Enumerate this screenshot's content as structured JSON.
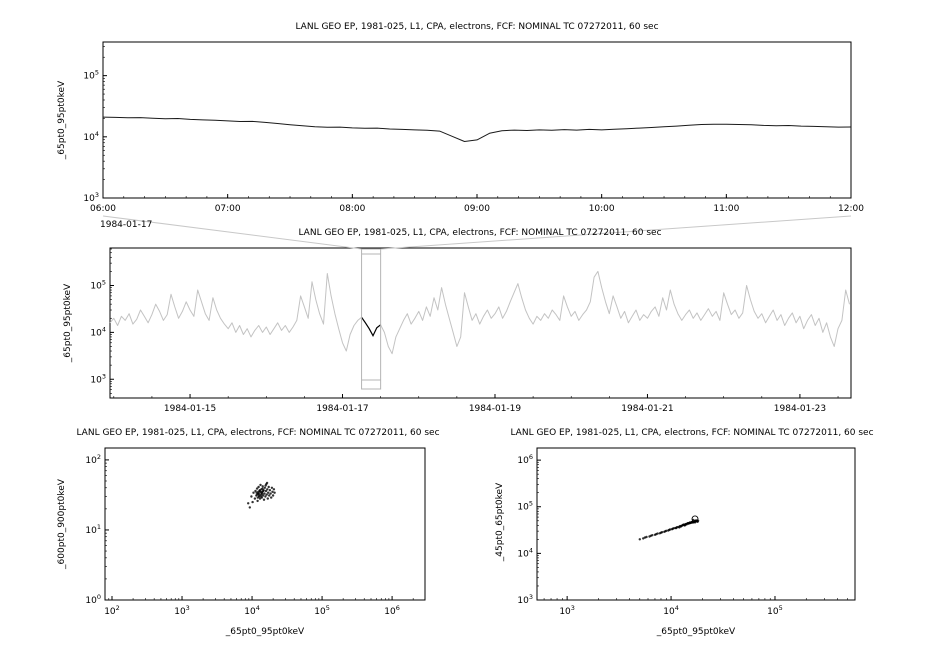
{
  "window": {
    "background": "#ffffff"
  },
  "chart_data": [
    {
      "type": "line",
      "title": "LANL GEO EP, 1981-025, L1, CPA, electrons, FCF: NOMINAL TC 07272011, 60 sec",
      "ylabel": "_65pt0_95pt0keV",
      "corner_label": "1984-01-17",
      "x_axis": {
        "scale": "linear",
        "range": [
          6,
          12
        ],
        "minor_step": 0.16667,
        "ticks": [
          {
            "v": 6,
            "label": "06:00"
          },
          {
            "v": 7,
            "label": "07:00"
          },
          {
            "v": 8,
            "label": "08:00"
          },
          {
            "v": 9,
            "label": "09:00"
          },
          {
            "v": 10,
            "label": "10:00"
          },
          {
            "v": 11,
            "label": "11:00"
          },
          {
            "v": 12,
            "label": "12:00"
          }
        ]
      },
      "y_axis": {
        "scale": "log",
        "range_log": [
          3,
          5.55
        ],
        "ticks_log": [
          3,
          4,
          5
        ]
      },
      "series": {
        "color": "#1a1a1a",
        "x_start": 6.0,
        "x_step": 0.1,
        "y_unit": 1000,
        "y": [
          21.0,
          20.8,
          20.5,
          20.6,
          20.1,
          19.7,
          19.9,
          19.3,
          18.9,
          18.6,
          18.2,
          17.8,
          17.9,
          17.2,
          16.5,
          15.8,
          15.2,
          14.6,
          14.3,
          14.4,
          14.0,
          13.8,
          13.9,
          13.4,
          13.2,
          13.0,
          12.8,
          12.4,
          10.2,
          8.4,
          8.9,
          11.4,
          12.6,
          12.9,
          12.7,
          13.0,
          12.8,
          13.1,
          12.9,
          13.2,
          13.0,
          13.3,
          13.6,
          13.9,
          14.2,
          14.6,
          15.0,
          15.5,
          15.9,
          16.1,
          16.0,
          15.9,
          15.7,
          15.4,
          15.2,
          15.3,
          15.0,
          14.8,
          14.6,
          14.4,
          14.5
        ]
      }
    },
    {
      "type": "line",
      "title": "LANL GEO EP, 1981-025, L1, CPA, electrons, FCF: NOMINAL TC 07272011, 60 sec",
      "ylabel": "_65pt0_95pt0keV",
      "x_axis": {
        "scale": "linear",
        "range": [
          13.95,
          23.67
        ],
        "minor_step": 0.5,
        "ticks": [
          {
            "v": 15,
            "label": "1984-01-15"
          },
          {
            "v": 17,
            "label": "1984-01-17"
          },
          {
            "v": 19,
            "label": "1984-01-19"
          },
          {
            "v": 21,
            "label": "1984-01-21"
          },
          {
            "v": 23,
            "label": "1984-01-23"
          }
        ]
      },
      "y_axis": {
        "scale": "log",
        "range_log": [
          2.6,
          5.8
        ],
        "ticks_log": [
          3,
          4,
          5
        ]
      },
      "highlight_range": [
        17.25,
        17.5
      ],
      "highlight_color": "#000000",
      "selection_range": [
        17.25,
        17.5
      ],
      "selection_color": "#b4b4b4",
      "connector_color": "#c8c8c8",
      "series": {
        "color": "#c3c3c3",
        "x_start": 13.95,
        "x_step": 0.05,
        "y_unit": 1000,
        "y": [
          16,
          20,
          14,
          22,
          18,
          25,
          15,
          19,
          30,
          22,
          16,
          24,
          40,
          28,
          18,
          24,
          65,
          35,
          20,
          28,
          45,
          30,
          22,
          80,
          45,
          25,
          18,
          55,
          30,
          20,
          15,
          12,
          16,
          10,
          14,
          9,
          12,
          8,
          11,
          14,
          10,
          13,
          9,
          12,
          16,
          11,
          14,
          10,
          13,
          18,
          60,
          35,
          20,
          120,
          50,
          25,
          15,
          180,
          60,
          25,
          12,
          6,
          4,
          9,
          14,
          18,
          21,
          16,
          12,
          8.5,
          12.5,
          14.5,
          10,
          5,
          3.5,
          8,
          12,
          18,
          25,
          15,
          20,
          28,
          18,
          35,
          22,
          55,
          30,
          90,
          40,
          20,
          10,
          5,
          8,
          70,
          35,
          18,
          25,
          15,
          22,
          30,
          20,
          25,
          35,
          20,
          28,
          45,
          70,
          110,
          55,
          30,
          20,
          15,
          22,
          18,
          25,
          20,
          30,
          24,
          18,
          60,
          35,
          22,
          28,
          18,
          24,
          30,
          45,
          150,
          200,
          90,
          45,
          25,
          60,
          35,
          20,
          28,
          16,
          22,
          30,
          18,
          24,
          20,
          28,
          35,
          22,
          55,
          30,
          80,
          40,
          25,
          18,
          24,
          30,
          20,
          26,
          18,
          24,
          32,
          22,
          28,
          18,
          70,
          40,
          24,
          30,
          20,
          26,
          100,
          50,
          28,
          20,
          25,
          16,
          22,
          30,
          18,
          24,
          14,
          20,
          26,
          16,
          22,
          12,
          18,
          24,
          14,
          20,
          10,
          16,
          8,
          5,
          12,
          18,
          80,
          40
        ]
      }
    },
    {
      "type": "scatter",
      "title": "LANL GEO EP, 1981-025, L1, CPA, electrons, FCF: NOMINAL TC 07272011, 60 sec",
      "ylabel": "_600pt0_900pt0keV",
      "xlabel": "_65pt0_95pt0keV",
      "x_axis": {
        "scale": "log",
        "range_log": [
          1.9,
          6.47
        ],
        "ticks_log": [
          2,
          3,
          4,
          5,
          6
        ]
      },
      "y_axis": {
        "scale": "log",
        "range_log": [
          0,
          2.17
        ],
        "ticks_log": [
          0,
          1,
          2
        ]
      },
      "point_color": "#000000",
      "points": [
        [
          9800,
          30
        ],
        [
          10500,
          34
        ],
        [
          11000,
          28
        ],
        [
          11200,
          36
        ],
        [
          11500,
          31
        ],
        [
          11800,
          39
        ],
        [
          12000,
          26
        ],
        [
          12200,
          33
        ],
        [
          12400,
          41
        ],
        [
          12600,
          30
        ],
        [
          12800,
          36
        ],
        [
          13000,
          28
        ],
        [
          13200,
          44
        ],
        [
          13400,
          32
        ],
        [
          13600,
          38
        ],
        [
          13800,
          29
        ],
        [
          14000,
          35
        ],
        [
          14200,
          42
        ],
        [
          14400,
          31
        ],
        [
          14600,
          37
        ],
        [
          14800,
          27
        ],
        [
          15000,
          33
        ],
        [
          15200,
          40
        ],
        [
          15500,
          30
        ],
        [
          15800,
          36
        ],
        [
          16000,
          45
        ],
        [
          16200,
          32
        ],
        [
          16500,
          38
        ],
        [
          16800,
          28
        ],
        [
          17000,
          34
        ],
        [
          17300,
          41
        ],
        [
          17600,
          31
        ],
        [
          18000,
          37
        ],
        [
          18400,
          33
        ],
        [
          18800,
          29
        ],
        [
          19200,
          40
        ],
        [
          19600,
          35
        ],
        [
          20000,
          31
        ],
        [
          20500,
          38
        ],
        [
          21000,
          34
        ],
        [
          13100,
          35
        ],
        [
          12700,
          31
        ],
        [
          13900,
          33
        ],
        [
          14500,
          36
        ],
        [
          12100,
          29
        ],
        [
          11600,
          34
        ],
        [
          12900,
          37
        ],
        [
          13500,
          30
        ],
        [
          14100,
          39
        ],
        [
          12300,
          35
        ],
        [
          8800,
          24
        ],
        [
          9300,
          21
        ],
        [
          10200,
          25
        ],
        [
          16400,
          47
        ],
        [
          15600,
          43
        ],
        [
          11900,
          32
        ],
        [
          13700,
          34
        ],
        [
          12500,
          33
        ]
      ]
    },
    {
      "type": "scatter",
      "title": "LANL GEO EP, 1981-025, L1, CPA, electrons, FCF: NOMINAL TC 07272011, 60 sec",
      "ylabel": "_45pt0_65pt0keV",
      "xlabel": "_65pt0_95pt0keV",
      "x_axis": {
        "scale": "log",
        "range_log": [
          2.71,
          5.77
        ],
        "ticks_log": [
          3,
          4,
          5
        ]
      },
      "y_axis": {
        "scale": "log",
        "range_log": [
          3,
          6.26
        ],
        "ticks_log": [
          3,
          4,
          5,
          6
        ]
      },
      "point_color": "#000000",
      "ring": [
        17000,
        55000
      ],
      "points": [
        [
          5000,
          20000
        ],
        [
          5400,
          21000
        ],
        [
          5800,
          22500
        ],
        [
          6200,
          23000
        ],
        [
          6600,
          24500
        ],
        [
          7000,
          25000
        ],
        [
          7400,
          26500
        ],
        [
          7800,
          27000
        ],
        [
          8200,
          28500
        ],
        [
          8600,
          29000
        ],
        [
          9000,
          30500
        ],
        [
          9400,
          31000
        ],
        [
          9800,
          32500
        ],
        [
          10200,
          33000
        ],
        [
          10600,
          34500
        ],
        [
          11000,
          35000
        ],
        [
          11400,
          36500
        ],
        [
          11800,
          37000
        ],
        [
          12200,
          38500
        ],
        [
          12600,
          39000
        ],
        [
          13000,
          40500
        ],
        [
          13400,
          41000
        ],
        [
          13800,
          42500
        ],
        [
          14200,
          43000
        ],
        [
          14600,
          44500
        ],
        [
          15000,
          45000
        ],
        [
          12400,
          37500
        ],
        [
          12800,
          39500
        ],
        [
          13200,
          41500
        ],
        [
          13600,
          40000
        ],
        [
          14000,
          42000
        ],
        [
          14400,
          44000
        ],
        [
          14800,
          43500
        ],
        [
          15200,
          46000
        ],
        [
          15600,
          45500
        ],
        [
          16000,
          47000
        ],
        [
          16400,
          46500
        ],
        [
          16800,
          48000
        ],
        [
          15400,
          44800
        ],
        [
          15800,
          46800
        ],
        [
          16200,
          45800
        ],
        [
          16600,
          47800
        ],
        [
          17000,
          46200
        ],
        [
          17400,
          48500
        ],
        [
          13500,
          39800
        ],
        [
          14100,
          41800
        ],
        [
          14700,
          43800
        ],
        [
          15300,
          45300
        ],
        [
          15900,
          46300
        ],
        [
          16500,
          47300
        ],
        [
          12000,
          36000
        ],
        [
          11200,
          34800
        ],
        [
          10400,
          33800
        ],
        [
          9600,
          31800
        ],
        [
          8800,
          29800
        ],
        [
          8000,
          27800
        ],
        [
          7200,
          25800
        ],
        [
          6400,
          23800
        ],
        [
          5600,
          21800
        ],
        [
          16300,
          52000
        ],
        [
          17800,
          49000
        ],
        [
          18200,
          50000
        ],
        [
          17600,
          51000
        ],
        [
          18000,
          47500
        ],
        [
          17200,
          50500
        ],
        [
          16900,
          49500
        ]
      ]
    }
  ]
}
